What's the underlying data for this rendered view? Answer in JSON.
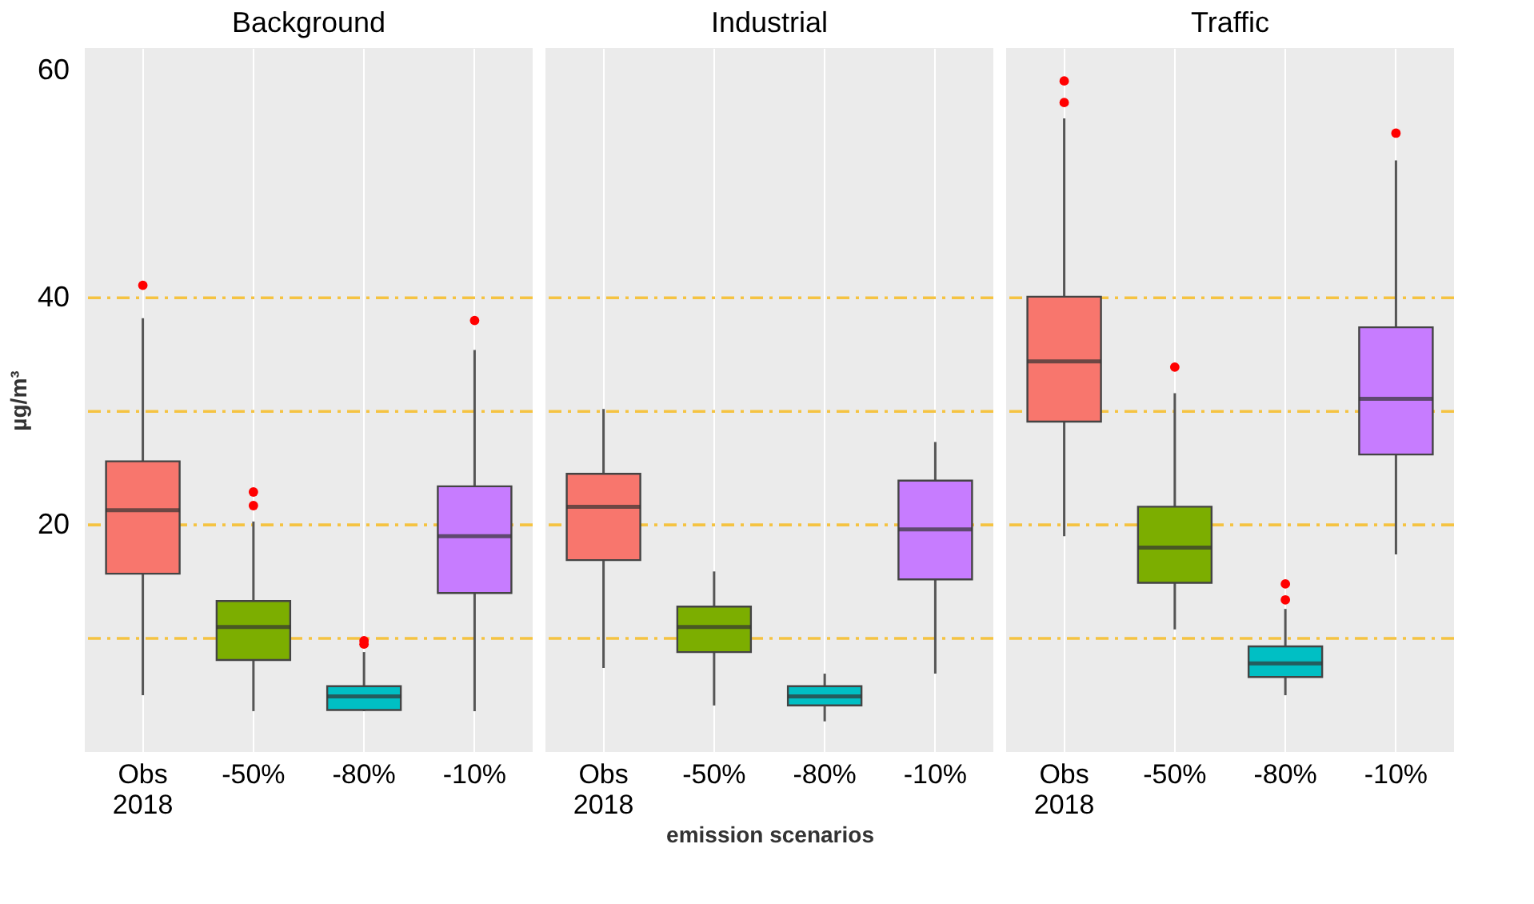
{
  "chart_data": [
    {
      "type": "box",
      "title": "Background",
      "ylabel": "µg/m³",
      "categories": [
        "Obs 2018",
        "-50%",
        "-80%",
        "-10%"
      ],
      "colors": [
        "#f8766d",
        "#7cae00",
        "#00bfc4",
        "#c77cff"
      ],
      "ylim": [
        0,
        62
      ],
      "yticks": [
        20,
        40,
        60
      ],
      "grid": "x",
      "boxes": [
        {
          "low": 5.0,
          "q1": 15.7,
          "median": 21.3,
          "q3": 25.6,
          "high": 38.2,
          "outliers": [
            41.1
          ]
        },
        {
          "low": 3.6,
          "q1": 8.1,
          "median": 11.0,
          "q3": 13.3,
          "high": 20.3,
          "outliers": [
            21.7,
            22.9
          ]
        },
        {
          "low": 3.6,
          "q1": 3.7,
          "median": 4.9,
          "q3": 5.8,
          "high": 8.8,
          "outliers": [
            9.5,
            9.8
          ]
        },
        {
          "low": 3.6,
          "q1": 14.0,
          "median": 19.0,
          "q3": 23.4,
          "high": 35.4,
          "outliers": [
            38.0
          ]
        }
      ],
      "ref_lines": [
        {
          "axis": "y",
          "value": 10,
          "color": "#f5c342",
          "line_style": "dashed"
        },
        {
          "axis": "y",
          "value": 20,
          "color": "#f5c342",
          "line_style": "dashed"
        },
        {
          "axis": "y",
          "value": 30,
          "color": "#f5c342",
          "line_style": "dashed"
        },
        {
          "axis": "y",
          "value": 40,
          "color": "#f5c342",
          "line_style": "dashed"
        }
      ]
    },
    {
      "type": "box",
      "title": "Industrial",
      "xlabel": "emission scenarios",
      "categories": [
        "Obs 2018",
        "-50%",
        "-80%",
        "-10%"
      ],
      "colors": [
        "#f8766d",
        "#7cae00",
        "#00bfc4",
        "#c77cff"
      ],
      "ylim": [
        0,
        62
      ],
      "yticks": [
        20,
        40,
        60
      ],
      "grid": "x",
      "tick_labels": "x",
      "boxes": [
        {
          "low": 7.4,
          "q1": 16.9,
          "median": 21.6,
          "q3": 24.5,
          "high": 30.2
        },
        {
          "low": 4.1,
          "q1": 8.8,
          "median": 11.0,
          "q3": 12.8,
          "high": 15.9
        },
        {
          "low": 2.7,
          "q1": 4.1,
          "median": 4.9,
          "q3": 5.8,
          "high": 6.9
        },
        {
          "low": 6.9,
          "q1": 15.2,
          "median": 19.6,
          "q3": 23.9,
          "high": 27.3
        }
      ],
      "ref_lines": [
        {
          "axis": "y",
          "value": 10,
          "color": "#f5c342",
          "line_style": "dashed"
        },
        {
          "axis": "y",
          "value": 20,
          "color": "#f5c342",
          "line_style": "dashed"
        },
        {
          "axis": "y",
          "value": 30,
          "color": "#f5c342",
          "line_style": "dashed"
        },
        {
          "axis": "y",
          "value": 40,
          "color": "#f5c342",
          "line_style": "dashed"
        }
      ]
    },
    {
      "type": "box",
      "title": "Traffic",
      "categories": [
        "Obs 2018",
        "-50%",
        "-80%",
        "-10%"
      ],
      "colors": [
        "#f8766d",
        "#7cae00",
        "#00bfc4",
        "#c77cff"
      ],
      "ylim": [
        0,
        62
      ],
      "yticks": [
        20,
        40,
        60
      ],
      "grid": "x",
      "tick_labels": "x",
      "boxes": [
        {
          "low": 19.0,
          "q1": 29.1,
          "median": 34.4,
          "q3": 40.1,
          "high": 55.8,
          "outliers": [
            57.2,
            59.1
          ]
        },
        {
          "low": 10.8,
          "q1": 14.9,
          "median": 18.0,
          "q3": 21.6,
          "high": 31.6,
          "outliers": [
            33.9
          ]
        },
        {
          "low": 5.0,
          "q1": 6.6,
          "median": 7.8,
          "q3": 9.3,
          "high": 12.6,
          "outliers": [
            13.4,
            14.8
          ]
        },
        {
          "low": 17.4,
          "q1": 26.2,
          "median": 31.1,
          "q3": 37.4,
          "high": 52.1,
          "outliers": [
            54.5
          ]
        }
      ],
      "ref_lines": [
        {
          "axis": "y",
          "value": 10,
          "color": "#f5c342",
          "line_style": "dashed"
        },
        {
          "axis": "y",
          "value": 20,
          "color": "#f5c342",
          "line_style": "dashed"
        },
        {
          "axis": "y",
          "value": 30,
          "color": "#f5c342",
          "line_style": "dashed"
        },
        {
          "axis": "y",
          "value": 40,
          "color": "#f5c342",
          "line_style": "dashed"
        }
      ]
    }
  ]
}
